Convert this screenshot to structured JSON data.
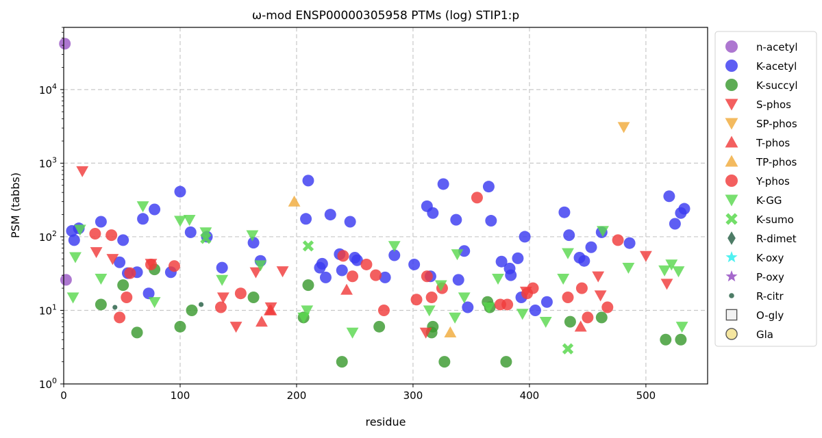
{
  "chart_data": {
    "type": "scatter",
    "title": "ω-mod ENSP00000305958 PTMs (log) STIP1:p",
    "xlabel": "residue",
    "ylabel": "PSM (tabbs)",
    "xlim": [
      0,
      553
    ],
    "ylim": [
      1,
      70000
    ],
    "yscale": "log",
    "grid": true,
    "legend_position": "outside-right",
    "x_ticks": [
      0,
      100,
      200,
      300,
      400,
      500
    ],
    "y_ticks": [
      1,
      10,
      100,
      1000,
      10000
    ],
    "x_tick_labels": [
      "0",
      "100",
      "200",
      "300",
      "400",
      "500"
    ],
    "y_tick_labels": [
      "10^0",
      "10^1",
      "10^2",
      "10^3",
      "10^4"
    ],
    "series": [
      {
        "name": "n-acetyl",
        "marker": "circle",
        "color": "#9b59c6",
        "points": [
          [
            1,
            42000
          ],
          [
            2,
            26
          ]
        ]
      },
      {
        "name": "K-acetyl",
        "marker": "circle",
        "color": "#3b3bf0",
        "points": [
          [
            7,
            120
          ],
          [
            9,
            90
          ],
          [
            13,
            130
          ],
          [
            32,
            160
          ],
          [
            48,
            45
          ],
          [
            51,
            90
          ],
          [
            55,
            32
          ],
          [
            63,
            33
          ],
          [
            68,
            175
          ],
          [
            73,
            17
          ],
          [
            78,
            235
          ],
          [
            92,
            33
          ],
          [
            100,
            410
          ],
          [
            109,
            115
          ],
          [
            123,
            100
          ],
          [
            136,
            38
          ],
          [
            163,
            83
          ],
          [
            169,
            47
          ],
          [
            208,
            175
          ],
          [
            210,
            580
          ],
          [
            220,
            38
          ],
          [
            222,
            43
          ],
          [
            225,
            28
          ],
          [
            229,
            200
          ],
          [
            237,
            58
          ],
          [
            239,
            35
          ],
          [
            246,
            160
          ],
          [
            250,
            52
          ],
          [
            252,
            48
          ],
          [
            276,
            28
          ],
          [
            284,
            56
          ],
          [
            301,
            42
          ],
          [
            312,
            260
          ],
          [
            315,
            29
          ],
          [
            317,
            210
          ],
          [
            326,
            520
          ],
          [
            337,
            170
          ],
          [
            339,
            26
          ],
          [
            344,
            64
          ],
          [
            347,
            11
          ],
          [
            365,
            480
          ],
          [
            367,
            165
          ],
          [
            376,
            46
          ],
          [
            383,
            37
          ],
          [
            384,
            30
          ],
          [
            390,
            51
          ],
          [
            393,
            15
          ],
          [
            396,
            100
          ],
          [
            405,
            10
          ],
          [
            415,
            13
          ],
          [
            430,
            215
          ],
          [
            434,
            105
          ],
          [
            443,
            52
          ],
          [
            447,
            47
          ],
          [
            453,
            72
          ],
          [
            462,
            115
          ],
          [
            486,
            82
          ],
          [
            520,
            355
          ],
          [
            525,
            150
          ],
          [
            530,
            210
          ],
          [
            533,
            240
          ]
        ]
      },
      {
        "name": "K-succyl",
        "marker": "circle",
        "color": "#3a9a2f",
        "points": [
          [
            32,
            12
          ],
          [
            51,
            22
          ],
          [
            63,
            5
          ],
          [
            78,
            36
          ],
          [
            100,
            6
          ],
          [
            110,
            10
          ],
          [
            163,
            15
          ],
          [
            206,
            8
          ],
          [
            210,
            22
          ],
          [
            239,
            2
          ],
          [
            271,
            6
          ],
          [
            316,
            5
          ],
          [
            317,
            6
          ],
          [
            327,
            2
          ],
          [
            364,
            13
          ],
          [
            366,
            11
          ],
          [
            380,
            2
          ],
          [
            435,
            7
          ],
          [
            462,
            8
          ],
          [
            517,
            4
          ],
          [
            530,
            4
          ]
        ]
      },
      {
        "name": "S-phos",
        "marker": "triangle-down",
        "color": "#f03c3c",
        "points": [
          [
            16,
            780
          ],
          [
            28,
            62
          ],
          [
            42,
            50
          ],
          [
            75,
            43
          ],
          [
            137,
            15
          ],
          [
            148,
            6
          ],
          [
            165,
            33
          ],
          [
            178,
            11
          ],
          [
            188,
            34
          ],
          [
            311,
            5
          ],
          [
            397,
            18
          ],
          [
            459,
            29
          ],
          [
            461,
            16
          ],
          [
            500,
            55
          ],
          [
            518,
            23
          ]
        ]
      },
      {
        "name": "SP-phos",
        "marker": "triangle-down",
        "color": "#f0ab3c",
        "points": [
          [
            481,
            3100
          ]
        ]
      },
      {
        "name": "T-phos",
        "marker": "triangle-up",
        "color": "#f03c3c",
        "points": [
          [
            170,
            7
          ],
          [
            177,
            10
          ],
          [
            178,
            10
          ],
          [
            243,
            19
          ],
          [
            444,
            6
          ]
        ]
      },
      {
        "name": "TP-phos",
        "marker": "triangle-up",
        "color": "#f0ab3c",
        "points": [
          [
            198,
            300
          ],
          [
            332,
            5
          ]
        ]
      },
      {
        "name": "Y-phos",
        "marker": "circle",
        "color": "#f03c3c",
        "points": [
          [
            27,
            110
          ],
          [
            41,
            105
          ],
          [
            48,
            8
          ],
          [
            54,
            15
          ],
          [
            57,
            32
          ],
          [
            75,
            42
          ],
          [
            95,
            40
          ],
          [
            135,
            11
          ],
          [
            152,
            17
          ],
          [
            240,
            55
          ],
          [
            248,
            29
          ],
          [
            260,
            42
          ],
          [
            268,
            30
          ],
          [
            275,
            10
          ],
          [
            303,
            14
          ],
          [
            312,
            29
          ],
          [
            316,
            15
          ],
          [
            325,
            20
          ],
          [
            355,
            340
          ],
          [
            375,
            12
          ],
          [
            381,
            12
          ],
          [
            398,
            17
          ],
          [
            403,
            20
          ],
          [
            433,
            15
          ],
          [
            445,
            20
          ],
          [
            450,
            8
          ],
          [
            467,
            11
          ],
          [
            476,
            90
          ]
        ]
      },
      {
        "name": "K-GG",
        "marker": "triangle-down",
        "color": "#5ad84f",
        "points": [
          [
            8,
            15
          ],
          [
            10,
            53
          ],
          [
            14,
            125
          ],
          [
            32,
            27
          ],
          [
            68,
            260
          ],
          [
            78,
            13
          ],
          [
            100,
            165
          ],
          [
            108,
            170
          ],
          [
            122,
            115
          ],
          [
            136,
            26
          ],
          [
            162,
            105
          ],
          [
            169,
            41
          ],
          [
            206,
            8
          ],
          [
            209,
            10
          ],
          [
            248,
            5
          ],
          [
            284,
            75
          ],
          [
            314,
            10
          ],
          [
            324,
            22
          ],
          [
            336,
            8
          ],
          [
            338,
            58
          ],
          [
            344,
            15
          ],
          [
            365,
            11
          ],
          [
            373,
            27
          ],
          [
            394,
            9
          ],
          [
            414,
            7
          ],
          [
            429,
            27
          ],
          [
            433,
            60
          ],
          [
            463,
            120
          ],
          [
            485,
            38
          ],
          [
            516,
            35
          ],
          [
            522,
            42
          ],
          [
            528,
            34
          ],
          [
            531,
            6
          ]
        ]
      },
      {
        "name": "K-sumo",
        "marker": "x",
        "color": "#5ad84f",
        "points": [
          [
            122,
            95
          ],
          [
            210,
            75
          ],
          [
            433,
            3
          ]
        ]
      },
      {
        "name": "R-dimet",
        "marker": "diamond",
        "color": "#3a6e55",
        "points": []
      },
      {
        "name": "K-oxy",
        "marker": "star",
        "color": "#3cf0f0",
        "points": []
      },
      {
        "name": "P-oxy",
        "marker": "star",
        "color": "#9b59c6",
        "points": []
      },
      {
        "name": "R-citr",
        "marker": "small-circle",
        "color": "#3a6e55",
        "points": [
          [
            44,
            11
          ],
          [
            118,
            12
          ]
        ]
      },
      {
        "name": "O-gly",
        "marker": "square-open",
        "color": "#555555",
        "points": []
      },
      {
        "name": "Gla",
        "marker": "circle-open",
        "color": "#f5e6a0",
        "points": []
      }
    ]
  }
}
